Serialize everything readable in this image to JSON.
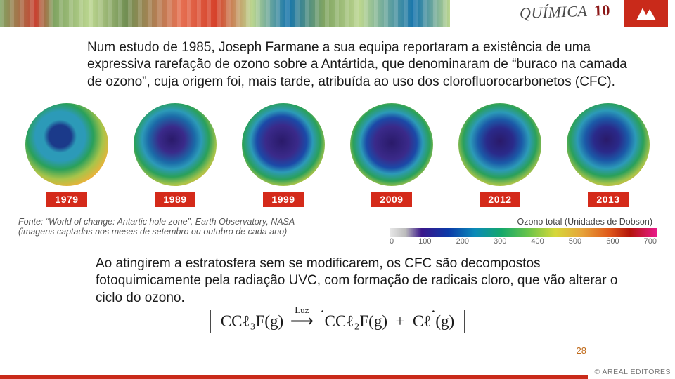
{
  "header": {
    "title_main": "QUÍMICA",
    "title_num": "10"
  },
  "paragraph_top": "Num estudo de 1985, Joseph Farmane a sua equipa reportaram a existência de uma expressiva rarefação de ozono sobre a Antártida, que denominaram de “buraco na camada de ozono”, cuja origem foi, mais tarde, atribuída ao uso dos clorofluorocarbonetos (CFC).",
  "globes": [
    {
      "year": "1979",
      "gradient": "radial-gradient(circle at 42% 40%, #1b3a8a 0%, #1b3a8a 16%, #2c9ab8 24%, #2c9ab8 36%, #2aa05a 48%, #a8c44a 62%, #e6b43a 74%, #e04a1a 86%, #7a1a0a 96%)"
    },
    {
      "year": "1989",
      "gradient": "radial-gradient(circle at 46% 44%, #2a1a6a 0%, #3a2a8a 20%, #1b6aa8 36%, #2c9ab8 46%, #2aa05a 58%, #a8c44a 70%, #e6b43a 80%, #e04a1a 90%, #7a1a0a 97%)"
    },
    {
      "year": "1999",
      "gradient": "radial-gradient(circle at 48% 46%, #2a1a6a 0%, #3a2a8a 26%, #1b4aa8 40%, #2c9ab8 50%, #2aa05a 62%, #a8c44a 72%, #e6b43a 82%, #e04a1a 90%, #7a1a0a 97%)"
    },
    {
      "year": "2009",
      "gradient": "radial-gradient(circle at 50% 48%, #2a1a6a 0%, #3a2a8a 28%, #1b4aa8 42%, #2c9ab8 52%, #2aa05a 64%, #a8c44a 74%, #e6b43a 84%, #e04a1a 92%, #7a1a0a 98%)"
    },
    {
      "year": "2012",
      "gradient": "radial-gradient(circle at 50% 46%, #2a1a6a 0%, #2a2a8a 22%, #1b5aa8 36%, #2c9ab8 48%, #2aa05a 60%, #a8c44a 72%, #e6b43a 82%, #e04a1a 90%, #7a1a0a 97%)"
    },
    {
      "year": "2013",
      "gradient": "radial-gradient(circle at 48% 44%, #2a1a6a 0%, #2a2a8a 20%, #1b5aa8 34%, #2c9ab8 46%, #2aa05a 58%, #a8c44a 70%, #e6b43a 80%, #e04a1a 90%, #7a1a0a 97%)"
    }
  ],
  "caption": {
    "source_line1": "Fonte: “World of change: Antartic hole zone”, Earth Observatory, NASA",
    "source_line2": "(imagens captadas nos meses de setembro ou outubro de cada ano)",
    "scale_title": "Ozono total (Unidades de Dobson)",
    "scale_gradient": "linear-gradient(90deg, #e8e8e8 0%, #bcbcbc 6%, #3a168a 12%, #0b3aa8 22%, #0b8ab8 32%, #14a86a 42%, #6ac44a 52%, #d6d83a 62%, #e6a43a 72%, #e05a1a 82%, #b4140a 90%, #e81a8a 100%)",
    "scale_ticks": [
      "0",
      "100",
      "200",
      "300",
      "400",
      "500",
      "600",
      "700"
    ]
  },
  "paragraph_bottom": "Ao atingirem a estratosfera sem se modificarem, os CFC são decompostos fotoquimicamente pela radiação UVC, com formação de radicais cloro, que vão alterar o ciclo do ozono.",
  "formula": {
    "reactant": "CCℓ₃F(g)",
    "arrow_label": "Luz",
    "product1": "CCℓ₂F(g)",
    "product2": "Cℓ",
    "product2_tail": "(g)"
  },
  "page_number": "28",
  "footer_credit": "© AREAL EDITORES"
}
